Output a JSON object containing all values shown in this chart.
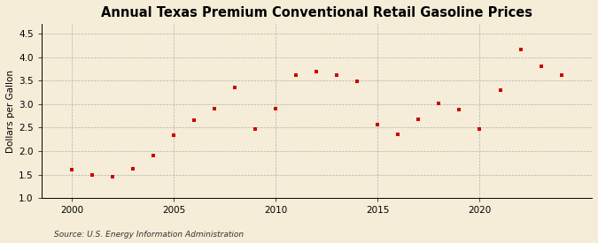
{
  "title": "Annual Texas Premium Conventional Retail Gasoline Prices",
  "ylabel": "Dollars per Gallon",
  "source": "Source: U.S. Energy Information Administration",
  "years": [
    2000,
    2001,
    2002,
    2003,
    2004,
    2005,
    2006,
    2007,
    2008,
    2009,
    2010,
    2011,
    2012,
    2013,
    2014,
    2015,
    2016,
    2017,
    2018,
    2019,
    2020,
    2021,
    2022,
    2023,
    2024
  ],
  "prices": [
    1.6,
    1.49,
    1.46,
    1.62,
    1.9,
    2.34,
    2.65,
    2.9,
    3.35,
    2.47,
    2.9,
    3.62,
    3.7,
    3.61,
    3.49,
    2.57,
    2.36,
    2.68,
    3.02,
    2.89,
    2.47,
    3.3,
    4.16,
    3.81,
    3.62
  ],
  "marker_color": "#cc0000",
  "marker": "s",
  "marker_size": 3,
  "ylim": [
    1.0,
    4.7
  ],
  "yticks": [
    1.0,
    1.5,
    2.0,
    2.5,
    3.0,
    3.5,
    4.0,
    4.5
  ],
  "xlim": [
    1998.5,
    2025.5
  ],
  "xticks": [
    2000,
    2005,
    2010,
    2015,
    2020
  ],
  "grid_color": "#b0b0b0",
  "bg_color": "#f5edd8",
  "title_fontsize": 10.5,
  "label_fontsize": 7.5,
  "tick_fontsize": 7.5,
  "source_fontsize": 6.5
}
